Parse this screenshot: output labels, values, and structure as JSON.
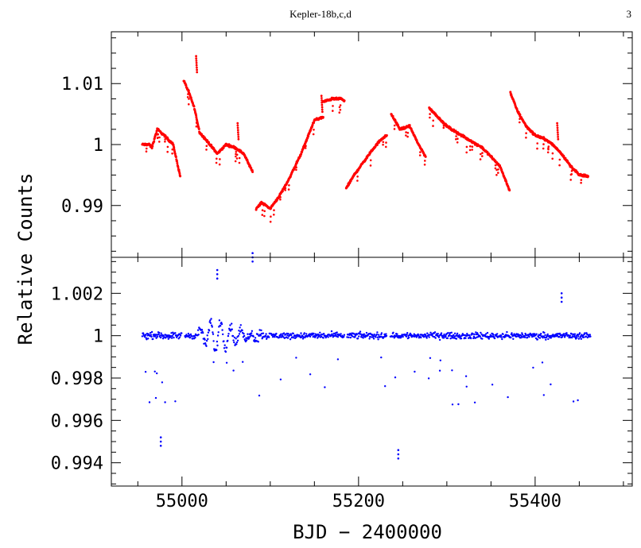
{
  "header": {
    "title": "Kepler-18b,c,d",
    "page_number": "3"
  },
  "chart_data": [
    {
      "type": "scatter",
      "panel": "top",
      "series": [
        {
          "color": "#ff0000"
        }
      ],
      "xlim": [
        54920,
        55510
      ],
      "ylim": [
        0.9815,
        1.0185
      ],
      "xticks": [
        55000,
        55200,
        55400
      ],
      "yticks": [
        0.99,
        1,
        1.01
      ],
      "ytick_labels": [
        "0.99",
        "1",
        "1.01"
      ],
      "segments": [
        {
          "x": [
            54955,
            54963,
            54966,
            54972,
            54980,
            54990,
            54998
          ],
          "y": [
            1.0,
            1.0,
            0.9995,
            1.0025,
            1.0015,
            1.0,
            0.9948
          ]
        },
        {
          "x": [
            55002,
            55008,
            55014,
            55020,
            55030,
            55040,
            55050,
            55060,
            55070,
            55080
          ],
          "y": [
            1.0105,
            1.0085,
            1.006,
            1.002,
            1.0003,
            0.9985,
            1.0,
            0.9995,
            0.9985,
            0.9955
          ]
        },
        {
          "x": [
            55084,
            55090,
            55100,
            55110,
            55120,
            55135,
            55150,
            55160
          ],
          "y": [
            0.9895,
            0.9905,
            0.9895,
            0.9915,
            0.994,
            0.9985,
            1.004,
            1.0045
          ]
        },
        {
          "x": [
            55160,
            55170,
            55180,
            55184
          ],
          "y": [
            1.007,
            1.0075,
            1.0075,
            1.0072
          ]
        },
        {
          "x": [
            55186,
            55195,
            55205,
            55215,
            55225,
            55232
          ],
          "y": [
            0.9928,
            0.995,
            0.997,
            0.999,
            1.0008,
            1.0015
          ]
        },
        {
          "x": [
            55237,
            55247,
            55258,
            55268,
            55276
          ],
          "y": [
            1.005,
            1.0025,
            1.003,
            1.0,
            0.998
          ]
        },
        {
          "x": [
            55280,
            55300,
            55320,
            55340,
            55360,
            55371
          ],
          "y": [
            1.006,
            1.003,
            1.0012,
            0.9995,
            0.9965,
            0.9925
          ]
        },
        {
          "x": [
            55372,
            55380,
            55390,
            55400,
            55410,
            55420,
            55430,
            55440,
            55450,
            55460
          ],
          "y": [
            1.0085,
            1.0055,
            1.003,
            1.0015,
            1.001,
            1.0,
            0.9985,
            0.9965,
            0.995,
            0.9948
          ]
        }
      ],
      "spikes": [
        {
          "x": 55016,
          "y": 1.0145
        },
        {
          "x": 55063,
          "y": 1.0035
        },
        {
          "x": 55158,
          "y": 1.008
        },
        {
          "x": 55425,
          "y": 1.0035
        }
      ]
    },
    {
      "type": "scatter",
      "panel": "bottom",
      "series": [
        {
          "color": "#0000ff"
        }
      ],
      "xlim": [
        54920,
        55510
      ],
      "ylim": [
        0.9929,
        1.0037
      ],
      "xticks": [
        55000,
        55200,
        55400
      ],
      "xtick_labels": [
        "55000",
        "55200",
        "55400"
      ],
      "yticks": [
        0.994,
        0.996,
        0.998,
        1,
        1.002
      ],
      "ytick_labels": [
        "0.994",
        "0.996",
        "0.998",
        "1",
        "1.002"
      ],
      "baseline": 1.0,
      "data_range": [
        54955,
        55463
      ],
      "outliers": [
        {
          "x": 54976,
          "y": 0.9948
        },
        {
          "x": 55245,
          "y": 0.9942
        },
        {
          "x": 55080,
          "y": 1.0035
        },
        {
          "x": 55040,
          "y": 1.0027
        },
        {
          "x": 55430,
          "y": 1.0016
        }
      ],
      "xlabel": "BJD − 2400000"
    }
  ],
  "shared_ylabel": "Relative Counts"
}
